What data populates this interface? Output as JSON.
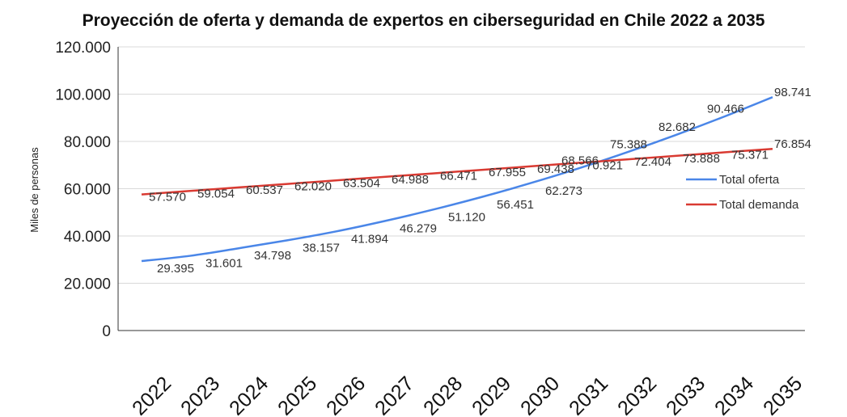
{
  "chart_data": {
    "type": "line",
    "title": "Proyección de oferta y demanda de expertos en ciberseguridad en Chile 2022 a 2035",
    "ylabel": "Miles de personas",
    "xlabel": "",
    "ylim": [
      0,
      120000
    ],
    "yticks": [
      "0",
      "20.000",
      "40.000",
      "60.000",
      "80.000",
      "100.000",
      "120.000"
    ],
    "grid": true,
    "legend_position": "right",
    "categories": [
      "2022",
      "2023",
      "2024",
      "2025",
      "2026",
      "2027",
      "2028",
      "2029",
      "2030",
      "2031",
      "2032",
      "2033",
      "2034",
      "2035"
    ],
    "series": [
      {
        "name": "Total oferta",
        "color": "#4a86e8",
        "values": [
          29395,
          31601,
          34798,
          38157,
          41894,
          46279,
          51120,
          56451,
          62273,
          68566,
          75388,
          82682,
          90466,
          98741
        ],
        "labels": [
          "29.395",
          "31.601",
          "34.798",
          "38.157",
          "41.894",
          "46.279",
          "51.120",
          "56.451",
          "62.273",
          "68.566",
          "75.388",
          "82.682",
          "90.466",
          "98.741"
        ]
      },
      {
        "name": "Total demanda",
        "color": "#d93a32",
        "values": [
          57570,
          59054,
          60537,
          62020,
          63504,
          64988,
          66471,
          67955,
          69438,
          70921,
          72404,
          73888,
          75371,
          76854
        ],
        "labels": [
          "57.570",
          "59.054",
          "60.537",
          "62.020",
          "63.504",
          "64.988",
          "66.471",
          "67.955",
          "69.438",
          "70.921",
          "72.404",
          "73.888",
          "75.371",
          "76.854"
        ]
      }
    ]
  }
}
